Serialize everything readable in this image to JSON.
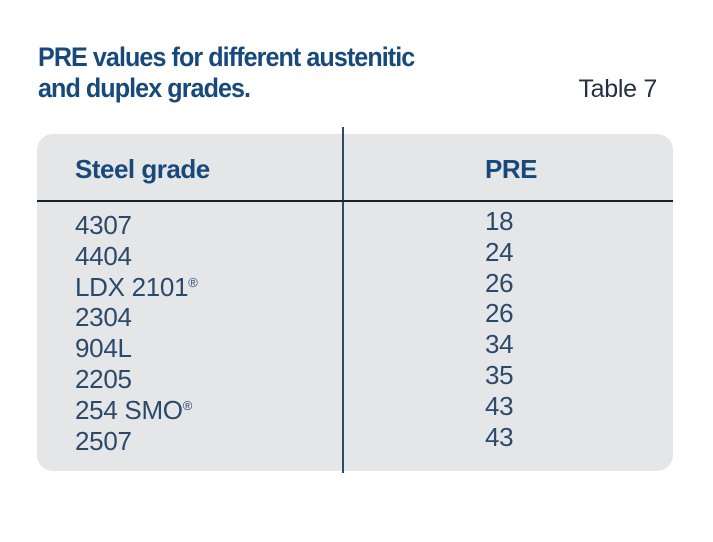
{
  "title": {
    "line1": "PRE values for different austenitic",
    "line2": "and duplex grades.",
    "caption": "Table 7"
  },
  "colors": {
    "title_blue": "#17497b",
    "caption_text": "#233140",
    "body_text": "#2b4a6b",
    "table_bg": "#e5e6e7",
    "divider": "#2d4a68",
    "header_rule": "#1a222c",
    "page_bg": "#ffffff"
  },
  "table": {
    "columns": [
      {
        "label": "Steel grade"
      },
      {
        "label": "PRE"
      }
    ],
    "rows": [
      {
        "grade": "4307",
        "mark": "",
        "pre": "18"
      },
      {
        "grade": "4404",
        "mark": "",
        "pre": "24"
      },
      {
        "grade": "LDX 2101",
        "mark": "®",
        "pre": "26"
      },
      {
        "grade": "2304",
        "mark": "",
        "pre": "26"
      },
      {
        "grade": "904L",
        "mark": "",
        "pre": "34"
      },
      {
        "grade": "2205",
        "mark": "",
        "pre": "35"
      },
      {
        "grade": "254 SMO",
        "mark": "®",
        "pre": "43"
      },
      {
        "grade": "2507",
        "mark": "",
        "pre": "43"
      }
    ]
  }
}
